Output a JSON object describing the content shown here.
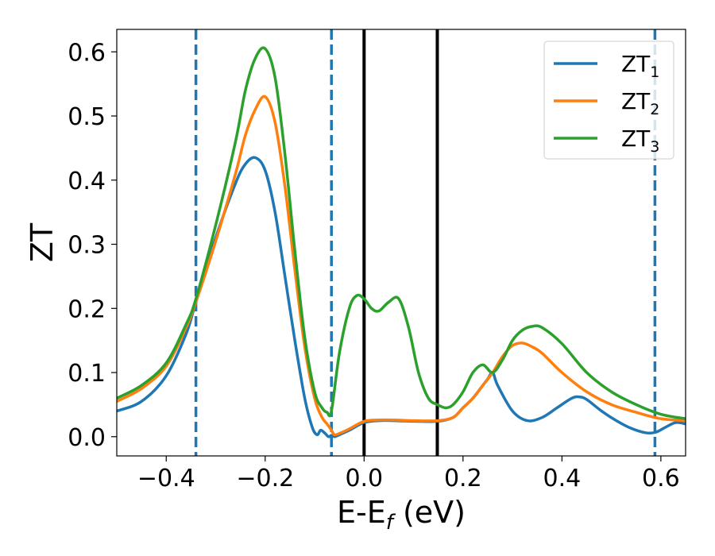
{
  "chart_data": {
    "type": "line",
    "title": "",
    "xlabel_main": "E-E",
    "xlabel_sub": "f",
    "xlabel_tail": " (eV)",
    "ylabel": "ZT",
    "xlim": [
      -0.5,
      0.65
    ],
    "ylim": [
      -0.03,
      0.635
    ],
    "x_ticks": [
      -0.4,
      -0.2,
      0.0,
      0.2,
      0.4,
      0.6
    ],
    "x_tick_labels": [
      "−0.4",
      "−0.2",
      "0.0",
      "0.2",
      "0.4",
      "0.6"
    ],
    "y_ticks": [
      0.0,
      0.1,
      0.2,
      0.3,
      0.4,
      0.5,
      0.6
    ],
    "y_tick_labels": [
      "0.0",
      "0.1",
      "0.2",
      "0.3",
      "0.4",
      "0.5",
      "0.6"
    ],
    "grid": false,
    "legend_position": "top-right",
    "vertical_lines": [
      {
        "x": -0.34,
        "style": "dashed",
        "color": "#1f77b4"
      },
      {
        "x": -0.066,
        "style": "dashed",
        "color": "#1f77b4"
      },
      {
        "x": 0.0,
        "style": "solid",
        "color": "#000000"
      },
      {
        "x": 0.148,
        "style": "solid",
        "color": "#000000"
      },
      {
        "x": 0.588,
        "style": "dashed",
        "color": "#1f77b4"
      }
    ],
    "series": [
      {
        "name": "ZT",
        "sub": "1",
        "color": "#1f77b4",
        "x": [
          -0.5,
          -0.45,
          -0.4,
          -0.36,
          -0.34,
          -0.3,
          -0.26,
          -0.24,
          -0.22,
          -0.2,
          -0.18,
          -0.16,
          -0.14,
          -0.12,
          -0.105,
          -0.095,
          -0.088,
          -0.08,
          -0.072,
          -0.066,
          -0.06,
          -0.05,
          -0.03,
          0.0,
          0.03,
          0.06,
          0.1,
          0.148,
          0.18,
          0.2,
          0.22,
          0.24,
          0.25,
          0.26,
          0.27,
          0.3,
          0.33,
          0.36,
          0.39,
          0.42,
          0.435,
          0.45,
          0.48,
          0.51,
          0.54,
          0.57,
          0.59,
          0.61,
          0.63,
          0.65
        ],
        "values": [
          0.04,
          0.055,
          0.095,
          0.16,
          0.21,
          0.31,
          0.395,
          0.425,
          0.435,
          0.415,
          0.35,
          0.25,
          0.15,
          0.06,
          0.015,
          0.003,
          0.01,
          0.006,
          0.0,
          0.002,
          0.0,
          0.003,
          0.01,
          0.022,
          0.025,
          0.025,
          0.024,
          0.024,
          0.03,
          0.045,
          0.06,
          0.08,
          0.09,
          0.1,
          0.08,
          0.04,
          0.025,
          0.03,
          0.045,
          0.06,
          0.062,
          0.058,
          0.04,
          0.025,
          0.013,
          0.006,
          0.007,
          0.015,
          0.022,
          0.02
        ]
      },
      {
        "name": "ZT",
        "sub": "2",
        "color": "#ff7f0e",
        "x": [
          -0.5,
          -0.45,
          -0.4,
          -0.36,
          -0.34,
          -0.3,
          -0.26,
          -0.24,
          -0.22,
          -0.2,
          -0.18,
          -0.16,
          -0.14,
          -0.12,
          -0.1,
          -0.085,
          -0.075,
          -0.066,
          -0.06,
          -0.05,
          -0.03,
          0.0,
          0.03,
          0.06,
          0.1,
          0.148,
          0.18,
          0.2,
          0.22,
          0.24,
          0.26,
          0.28,
          0.3,
          0.32,
          0.34,
          0.36,
          0.4,
          0.45,
          0.5,
          0.55,
          0.6,
          0.65
        ],
        "values": [
          0.055,
          0.075,
          0.11,
          0.17,
          0.21,
          0.305,
          0.41,
          0.47,
          0.51,
          0.53,
          0.49,
          0.39,
          0.26,
          0.14,
          0.06,
          0.03,
          0.02,
          0.01,
          0.003,
          0.005,
          0.012,
          0.024,
          0.026,
          0.026,
          0.025,
          0.025,
          0.03,
          0.045,
          0.06,
          0.08,
          0.1,
          0.125,
          0.142,
          0.146,
          0.14,
          0.13,
          0.1,
          0.07,
          0.05,
          0.038,
          0.028,
          0.025
        ]
      },
      {
        "name": "ZT",
        "sub": "3",
        "color": "#2ca02c",
        "x": [
          -0.5,
          -0.45,
          -0.4,
          -0.36,
          -0.34,
          -0.3,
          -0.26,
          -0.24,
          -0.22,
          -0.2,
          -0.18,
          -0.16,
          -0.14,
          -0.12,
          -0.1,
          -0.085,
          -0.075,
          -0.066,
          -0.05,
          -0.03,
          -0.015,
          0.0,
          0.015,
          0.03,
          0.05,
          0.07,
          0.09,
          0.11,
          0.13,
          0.148,
          0.165,
          0.18,
          0.2,
          0.22,
          0.24,
          0.26,
          0.28,
          0.3,
          0.32,
          0.34,
          0.36,
          0.4,
          0.45,
          0.5,
          0.55,
          0.6,
          0.65
        ],
        "values": [
          0.06,
          0.08,
          0.115,
          0.175,
          0.215,
          0.33,
          0.46,
          0.54,
          0.59,
          0.605,
          0.56,
          0.44,
          0.29,
          0.155,
          0.07,
          0.045,
          0.038,
          0.04,
          0.13,
          0.2,
          0.22,
          0.215,
          0.2,
          0.196,
          0.21,
          0.215,
          0.17,
          0.1,
          0.06,
          0.05,
          0.045,
          0.05,
          0.07,
          0.1,
          0.112,
          0.1,
          0.12,
          0.15,
          0.166,
          0.172,
          0.17,
          0.145,
          0.1,
          0.07,
          0.05,
          0.035,
          0.028
        ]
      }
    ]
  }
}
